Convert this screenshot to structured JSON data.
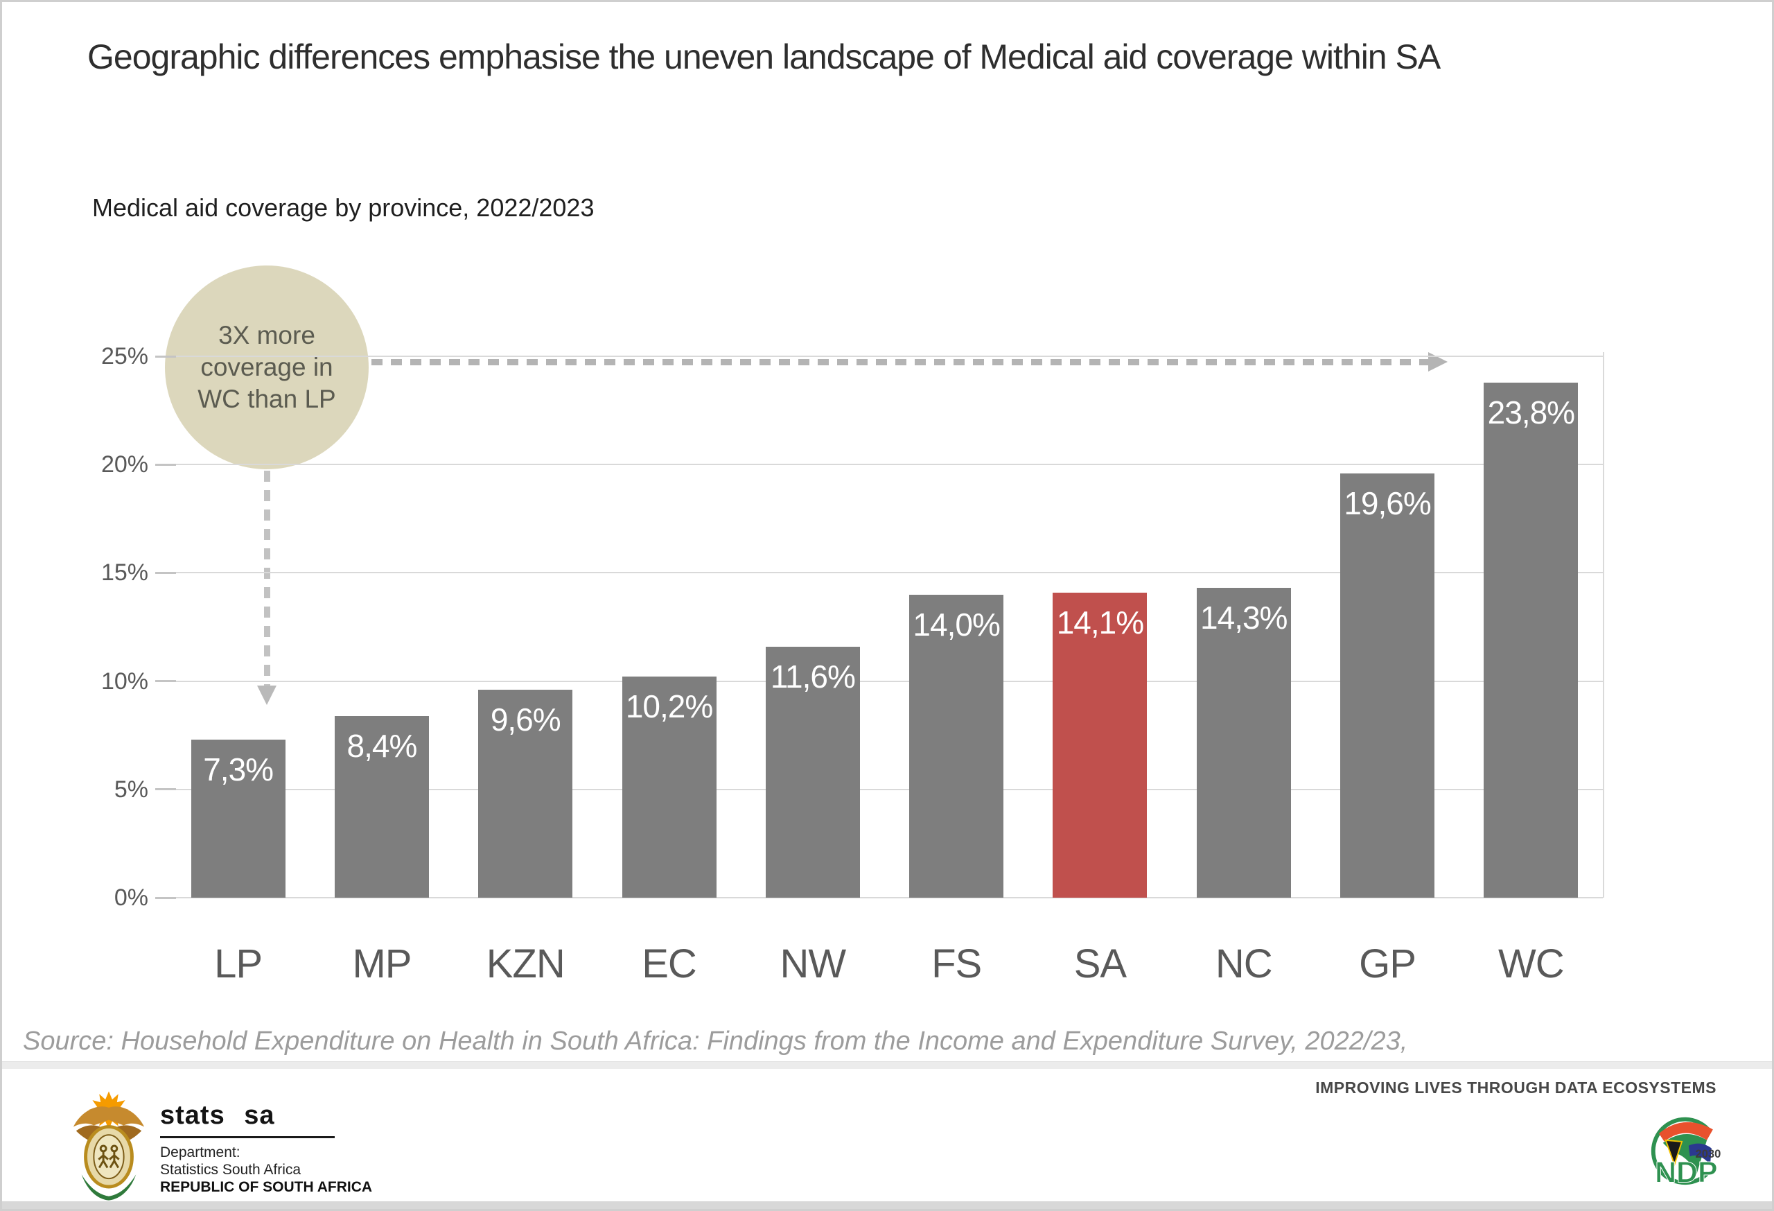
{
  "page": {
    "title": "Geographic differences emphasise the uneven landscape of Medical aid coverage within SA",
    "source_note": "Source: Household Expenditure on Health in South Africa: Findings from the Income and Expenditure Survey, 2022/23,"
  },
  "chart_data": {
    "type": "bar",
    "title": "Medical aid coverage by province, 2022/2023",
    "categories": [
      "LP",
      "MP",
      "KZN",
      "EC",
      "NW",
      "FS",
      "SA",
      "NC",
      "GP",
      "WC"
    ],
    "values": [
      7.3,
      8.4,
      9.6,
      10.2,
      11.6,
      14.0,
      14.1,
      14.3,
      19.6,
      23.8
    ],
    "value_labels": [
      "7,3%",
      "8,4%",
      "9,6%",
      "10,2%",
      "11,6%",
      "14,0%",
      "14,1%",
      "14,3%",
      "19,6%",
      "23,8%"
    ],
    "highlight_index": 6,
    "highlight_category": "SA",
    "ytick_labels": [
      "0%",
      "5%",
      "10%",
      "15%",
      "20%",
      "25%"
    ],
    "ytick_values": [
      0,
      5,
      10,
      15,
      20,
      25
    ],
    "ylim": [
      0,
      25
    ],
    "grid": true,
    "legend": "none",
    "bar_color": "#7e7e7e",
    "highlight_color": "#c0504d",
    "annotation": "3X more coverage in WC than LP"
  },
  "annotation": {
    "line1": "3X more",
    "line2": "coverage in",
    "line3": "WC than LP"
  },
  "footer": {
    "stats_sa_logo": {
      "brand": "stats sa",
      "lines": [
        "Department:",
        "Statistics South Africa",
        "REPUBLIC OF SOUTH AFRICA"
      ]
    },
    "tagline": "IMPROVING LIVES THROUGH DATA ECOSYSTEMS",
    "ndp_logo": {
      "year": "2030",
      "acronym": "NDP"
    }
  },
  "colors": {
    "bar": "#7e7e7e",
    "highlight": "#c0504d",
    "gridline": "#d9d9d9",
    "annotation_bubble": "#dcd7bc",
    "arrow": "#b4b4b4",
    "axis_text": "#595959"
  }
}
